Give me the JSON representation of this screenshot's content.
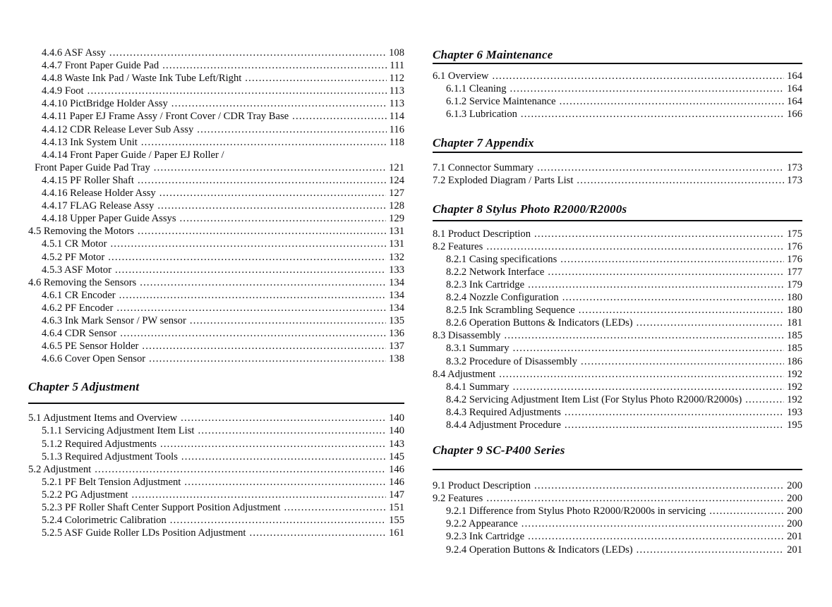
{
  "document": {
    "columns": [
      {
        "name": "left-column",
        "blocks": [
          {
            "type": "entries",
            "items": [
              {
                "level": "2",
                "label": "4.4.6 ASF Assy",
                "page": "108"
              },
              {
                "level": "2",
                "label": "4.4.7 Front Paper Guide Pad",
                "page": "111"
              },
              {
                "level": "2",
                "label": "4.4.8 Waste Ink Pad / Waste Ink Tube Left/Right",
                "page": "112"
              },
              {
                "level": "2",
                "label": "4.4.9 Foot",
                "page": "113"
              },
              {
                "level": "2",
                "label": "4.4.10 PictBridge Holder Assy",
                "page": "113"
              },
              {
                "level": "2",
                "label": "4.4.11 Paper EJ Frame Assy / Front Cover / CDR Tray Base",
                "page": "114"
              },
              {
                "level": "2",
                "label": "4.4.12 CDR Release Lever Sub Assy",
                "page": "116"
              },
              {
                "level": "2",
                "label": "4.4.13 Ink System Unit",
                "page": "118"
              },
              {
                "level": "2",
                "label": "4.4.14 Front Paper Guide / Paper EJ Roller /",
                "page": null
              },
              {
                "level": "cont",
                "label": "Front Paper Guide Pad Tray",
                "page": "121"
              },
              {
                "level": "2",
                "label": "4.4.15 PF Roller Shaft",
                "page": "124"
              },
              {
                "level": "2",
                "label": "4.4.16 Release Holder Assy",
                "page": "127"
              },
              {
                "level": "2",
                "label": "4.4.17 FLAG Release Assy",
                "page": "128"
              },
              {
                "level": "2",
                "label": "4.4.18 Upper Paper Guide Assys",
                "page": "129"
              },
              {
                "level": "1",
                "label": "4.5 Removing the Motors",
                "page": "131"
              },
              {
                "level": "2",
                "label": "4.5.1 CR Motor",
                "page": "131"
              },
              {
                "level": "2",
                "label": "4.5.2 PF Motor",
                "page": "132"
              },
              {
                "level": "2",
                "label": "4.5.3 ASF Motor",
                "page": "133"
              },
              {
                "level": "1",
                "label": "4.6 Removing the Sensors",
                "page": "134"
              },
              {
                "level": "2",
                "label": "4.6.1 CR Encoder",
                "page": "134"
              },
              {
                "level": "2",
                "label": "4.6.2 PF Encoder",
                "page": "134"
              },
              {
                "level": "2",
                "label": "4.6.3 Ink Mark Sensor / PW sensor",
                "page": "135"
              },
              {
                "level": "2",
                "label": "4.6.4 CDR Sensor",
                "page": "136"
              },
              {
                "level": "2",
                "label": "4.6.5 PE Sensor Holder",
                "page": "137"
              },
              {
                "level": "2",
                "label": "4.6.6 Cover Open Sensor",
                "page": "138"
              }
            ]
          },
          {
            "type": "chapter",
            "title": "Chapter 5 Adjustment"
          },
          {
            "type": "rule"
          },
          {
            "type": "entries",
            "items": [
              {
                "level": "1",
                "label": "5.1 Adjustment Items and Overview",
                "page": "140"
              },
              {
                "level": "2",
                "label": "5.1.1 Servicing Adjustment Item List",
                "page": "140"
              },
              {
                "level": "2",
                "label": "5.1.2 Required Adjustments",
                "page": "143"
              },
              {
                "level": "2",
                "label": "5.1.3 Required Adjustment Tools",
                "page": "145"
              },
              {
                "level": "1",
                "label": "5.2 Adjustment",
                "page": "146"
              },
              {
                "level": "2",
                "label": "5.2.1 PF Belt Tension Adjustment",
                "page": "146"
              },
              {
                "level": "2",
                "label": "5.2.2 PG Adjustment",
                "page": "147"
              },
              {
                "level": "2",
                "label": "5.2.3 PF Roller Shaft Center Support Position Adjustment",
                "page": "151"
              },
              {
                "level": "2",
                "label": "5.2.4 Colorimetric Calibration",
                "page": "155"
              },
              {
                "level": "2",
                "label": "5.2.5 ASF Guide Roller LDs Position Adjustment",
                "page": "161"
              }
            ]
          }
        ]
      },
      {
        "name": "right-column",
        "blocks": [
          {
            "type": "chapter",
            "title": "Chapter 6 Maintenance"
          },
          {
            "type": "rule"
          },
          {
            "type": "entries",
            "items": [
              {
                "level": "1",
                "label": "6.1 Overview",
                "page": "164"
              },
              {
                "level": "2",
                "label": "6.1.1 Cleaning",
                "page": "164"
              },
              {
                "level": "2",
                "label": "6.1.2 Service Maintenance",
                "page": "164"
              },
              {
                "level": "2",
                "label": "6.1.3 Lubrication",
                "page": "166"
              }
            ]
          },
          {
            "type": "chapter",
            "title": "Chapter 7 Appendix"
          },
          {
            "type": "rule"
          },
          {
            "type": "entries",
            "items": [
              {
                "level": "1",
                "label": "7.1 Connector Summary",
                "page": "173"
              },
              {
                "level": "1",
                "label": "7.2 Exploded Diagram / Parts List",
                "page": "173"
              }
            ]
          },
          {
            "type": "chapter",
            "title": "Chapter 8 Stylus Photo R2000/R2000s"
          },
          {
            "type": "rule"
          },
          {
            "type": "entries",
            "items": [
              {
                "level": "1",
                "label": "8.1 Product Description",
                "page": "175"
              },
              {
                "level": "1",
                "label": "8.2 Features",
                "page": "176"
              },
              {
                "level": "2",
                "label": "8.2.1 Casing specifications",
                "page": "176"
              },
              {
                "level": "2",
                "label": "8.2.2 Network Interface",
                "page": "177"
              },
              {
                "level": "2",
                "label": "8.2.3 Ink Cartridge",
                "page": "179"
              },
              {
                "level": "2",
                "label": "8.2.4 Nozzle Configuration",
                "page": "180"
              },
              {
                "level": "2",
                "label": "8.2.5 Ink Scrambling Sequence",
                "page": "180"
              },
              {
                "level": "2",
                "label": "8.2.6 Operation Buttons & Indicators (LEDs)",
                "page": "181"
              },
              {
                "level": "1",
                "label": "8.3 Disassembly",
                "page": "185"
              },
              {
                "level": "2",
                "label": "8.3.1 Summary",
                "page": "185"
              },
              {
                "level": "2",
                "label": "8.3.2 Procedure of Disassembly",
                "page": "186"
              },
              {
                "level": "1",
                "label": "8.4 Adjustment",
                "page": "192"
              },
              {
                "level": "2",
                "label": "8.4.1 Summary",
                "page": "192"
              },
              {
                "level": "2",
                "label": "8.4.2 Servicing Adjustment Item List (For Stylus Photo R2000/R2000s)",
                "page": "192"
              },
              {
                "level": "2",
                "label": "8.4.3 Required Adjustments",
                "page": "193"
              },
              {
                "level": "2",
                "label": "8.4.4 Adjustment Procedure",
                "page": "195"
              }
            ]
          },
          {
            "type": "chapter",
            "title": "Chapter 9 SC-P400 Series"
          },
          {
            "type": "rule"
          },
          {
            "type": "entries",
            "items": [
              {
                "level": "1",
                "label": "9.1 Product Description",
                "page": "200"
              },
              {
                "level": "1",
                "label": "9.2 Features",
                "page": "200"
              },
              {
                "level": "2",
                "label": "9.2.1 Difference from Stylus Photo R2000/R2000s in servicing",
                "page": "200"
              },
              {
                "level": "2",
                "label": "9.2.2 Appearance",
                "page": "200"
              },
              {
                "level": "2",
                "label": "9.2.3 Ink Cartridge",
                "page": "201"
              },
              {
                "level": "2",
                "label": "9.2.4 Operation Buttons & Indicators (LEDs)",
                "page": "201"
              }
            ]
          }
        ]
      }
    ],
    "text_color": "#0c0c0e",
    "background_color": "#ffffff"
  }
}
